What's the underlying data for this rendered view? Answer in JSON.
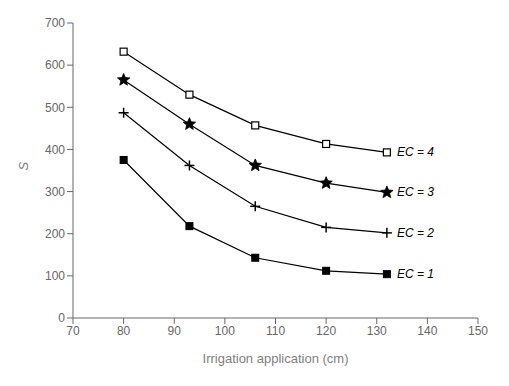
{
  "chart_data": {
    "type": "line",
    "xlabel": "Irrigation application (cm)",
    "ylabel": "S",
    "x": [
      80,
      93,
      106,
      120,
      132
    ],
    "series": [
      {
        "name": "EC = 4",
        "color": "#000000",
        "marker": "square-open",
        "values": [
          632,
          530,
          457,
          413,
          393
        ]
      },
      {
        "name": "EC = 3",
        "color": "#000000",
        "marker": "star",
        "values": [
          565,
          460,
          362,
          320,
          298
        ]
      },
      {
        "name": "EC = 2",
        "color": "#000000",
        "marker": "plus",
        "values": [
          487,
          362,
          265,
          215,
          202
        ]
      },
      {
        "name": "EC = 1",
        "color": "#000000",
        "marker": "square",
        "values": [
          375,
          218,
          143,
          112,
          104
        ]
      }
    ],
    "xlim": [
      70,
      150
    ],
    "ylim": [
      0,
      700
    ],
    "xticks": [
      70,
      80,
      90,
      100,
      110,
      120,
      130,
      140,
      150
    ],
    "yticks": [
      0,
      100,
      200,
      300,
      400,
      500,
      600,
      700
    ],
    "grid": false
  }
}
